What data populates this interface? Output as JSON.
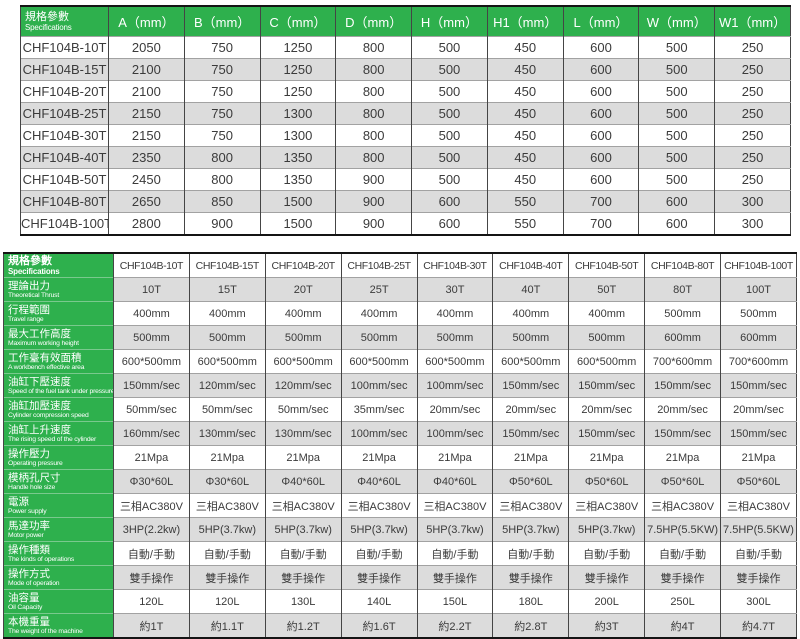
{
  "colors": {
    "header_green": "#2eb04d",
    "stripe_gray": "#dcdcdc",
    "text": "#3b3b3b",
    "header_text": "#ffffff"
  },
  "dimensions_table": {
    "header": {
      "label_zh": "規格參數",
      "label_en": "Specifications",
      "columns": [
        "A（mm）",
        "B（mm）",
        "C（mm）",
        "D（mm）",
        "H（mm）",
        "H1（mm）",
        "L（mm）",
        "W（mm）",
        "W1（mm）"
      ]
    },
    "rows": [
      {
        "model": "CHF104B-10T",
        "values": [
          "2050",
          "750",
          "1250",
          "800",
          "500",
          "450",
          "600",
          "500",
          "250"
        ]
      },
      {
        "model": "CHF104B-15T",
        "values": [
          "2100",
          "750",
          "1250",
          "800",
          "500",
          "450",
          "600",
          "500",
          "250"
        ]
      },
      {
        "model": "CHF104B-20T",
        "values": [
          "2100",
          "750",
          "1250",
          "800",
          "500",
          "450",
          "600",
          "500",
          "250"
        ]
      },
      {
        "model": "CHF104B-25T",
        "values": [
          "2150",
          "750",
          "1300",
          "800",
          "500",
          "450",
          "600",
          "500",
          "250"
        ]
      },
      {
        "model": "CHF104B-30T",
        "values": [
          "2150",
          "750",
          "1300",
          "800",
          "500",
          "450",
          "600",
          "500",
          "250"
        ]
      },
      {
        "model": "CHF104B-40T",
        "values": [
          "2350",
          "800",
          "1350",
          "800",
          "500",
          "450",
          "600",
          "500",
          "250"
        ]
      },
      {
        "model": "CHF104B-50T",
        "values": [
          "2450",
          "800",
          "1350",
          "900",
          "500",
          "450",
          "600",
          "500",
          "250"
        ]
      },
      {
        "model": "CHF104B-80T",
        "values": [
          "2650",
          "850",
          "1500",
          "900",
          "600",
          "550",
          "700",
          "600",
          "300"
        ]
      },
      {
        "model": "CHF104B-100T",
        "values": [
          "2800",
          "900",
          "1500",
          "900",
          "600",
          "550",
          "700",
          "600",
          "300"
        ]
      }
    ]
  },
  "spec_table": {
    "header": {
      "label_zh": "規格參數",
      "label_en": "Specifications",
      "models": [
        "CHF104B-10T",
        "CHF104B-15T",
        "CHF104B-20T",
        "CHF104B-25T",
        "CHF104B-30T",
        "CHF104B-40T",
        "CHF104B-50T",
        "CHF104B-80T",
        "CHF104B-100T"
      ]
    },
    "rows": [
      {
        "zh": "理論出力",
        "en": "Theoretical Thrust",
        "values": [
          "10T",
          "15T",
          "20T",
          "25T",
          "30T",
          "40T",
          "50T",
          "80T",
          "100T"
        ]
      },
      {
        "zh": "行程範圍",
        "en": "Travel range",
        "values": [
          "400mm",
          "400mm",
          "400mm",
          "400mm",
          "400mm",
          "400mm",
          "400mm",
          "500mm",
          "500mm"
        ]
      },
      {
        "zh": "最大工作高度",
        "en": "Maximum working height",
        "values": [
          "500mm",
          "500mm",
          "500mm",
          "500mm",
          "500mm",
          "500mm",
          "500mm",
          "600mm",
          "600mm"
        ]
      },
      {
        "zh": "工作臺有效面積",
        "en": "A workbench effective area",
        "values": [
          "600*500mm",
          "600*500mm",
          "600*500mm",
          "600*500mm",
          "600*500mm",
          "600*500mm",
          "600*500mm",
          "700*600mm",
          "700*600mm"
        ]
      },
      {
        "zh": "油缸下壓速度",
        "en": "Speed of the fuel tank under pressure",
        "values": [
          "150mm/sec",
          "120mm/sec",
          "120mm/sec",
          "100mm/sec",
          "100mm/sec",
          "150mm/sec",
          "150mm/sec",
          "150mm/sec",
          "150mm/sec"
        ]
      },
      {
        "zh": "油缸加壓速度",
        "en": "Cylinder compression speed",
        "values": [
          "50mm/sec",
          "50mm/sec",
          "50mm/sec",
          "35mm/sec",
          "20mm/sec",
          "20mm/sec",
          "20mm/sec",
          "20mm/sec",
          "20mm/sec"
        ]
      },
      {
        "zh": "油缸上升速度",
        "en": "The rising speed of the cylinder",
        "values": [
          "160mm/sec",
          "130mm/sec",
          "130mm/sec",
          "100mm/sec",
          "100mm/sec",
          "150mm/sec",
          "150mm/sec",
          "150mm/sec",
          "150mm/sec"
        ]
      },
      {
        "zh": "操作壓力",
        "en": "Operating pressure",
        "values": [
          "21Mpa",
          "21Mpa",
          "21Mpa",
          "21Mpa",
          "21Mpa",
          "21Mpa",
          "21Mpa",
          "21Mpa",
          "21Mpa"
        ]
      },
      {
        "zh": "模柄孔尺寸",
        "en": "Handle hole size",
        "values": [
          "Φ30*60L",
          "Φ30*60L",
          "Φ40*60L",
          "Φ40*60L",
          "Φ40*60L",
          "Φ50*60L",
          "Φ50*60L",
          "Φ50*60L",
          "Φ50*60L"
        ]
      },
      {
        "zh": "電源",
        "en": "Power supply",
        "values": [
          "三相AC380V",
          "三相AC380V",
          "三相AC380V",
          "三相AC380V",
          "三相AC380V",
          "三相AC380V",
          "三相AC380V",
          "三相AC380V",
          "三相AC380V"
        ]
      },
      {
        "zh": "馬達功率",
        "en": "Motor power",
        "values": [
          "3HP(2.2kw)",
          "5HP(3.7kw)",
          "5HP(3.7kw)",
          "5HP(3.7kw)",
          "5HP(3.7kw)",
          "5HP(3.7kw)",
          "5HP(3.7kw)",
          "7.5HP(5.5KW)",
          "7.5HP(5.5KW)"
        ]
      },
      {
        "zh": "操作種類",
        "en": "The kinds of operations",
        "values": [
          "自動/手動",
          "自動/手動",
          "自動/手動",
          "自動/手動",
          "自動/手動",
          "自動/手動",
          "自動/手動",
          "自動/手動",
          "自動/手動"
        ]
      },
      {
        "zh": "操作方式",
        "en": "Mode of operation",
        "values": [
          "雙手操作",
          "雙手操作",
          "雙手操作",
          "雙手操作",
          "雙手操作",
          "雙手操作",
          "雙手操作",
          "雙手操作",
          "雙手操作"
        ]
      },
      {
        "zh": "油容量",
        "en": "Oil Capacity",
        "values": [
          "120L",
          "120L",
          "130L",
          "140L",
          "150L",
          "180L",
          "200L",
          "250L",
          "300L"
        ]
      },
      {
        "zh": "本機重量",
        "en": "The weight of the machine",
        "values": [
          "約1T",
          "約1.1T",
          "約1.2T",
          "約1.6T",
          "約2.2T",
          "約2.8T",
          "約3T",
          "約4T",
          "約4.7T"
        ]
      }
    ]
  }
}
